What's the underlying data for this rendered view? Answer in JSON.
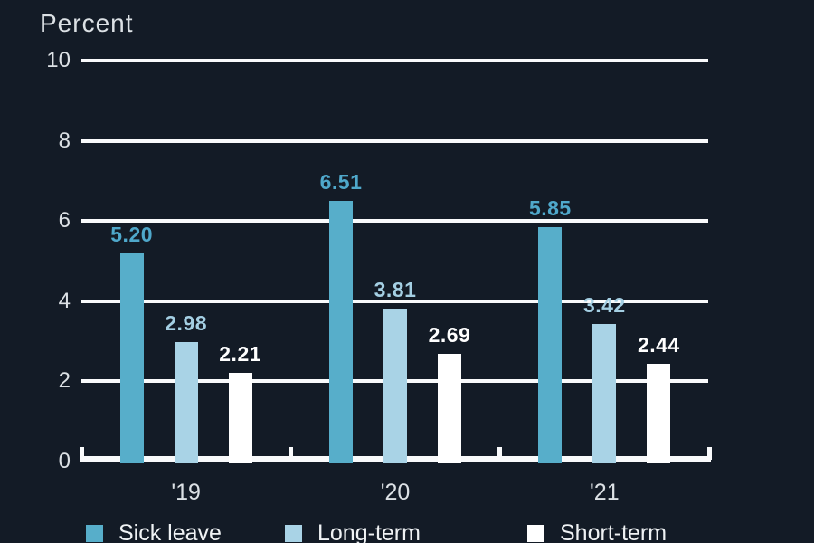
{
  "title": "Percent",
  "colors": {
    "background": "#131B26",
    "grid": "#F9FAFB",
    "axis_text": "#DCE1E5",
    "sick_leave": "#57AECA",
    "long_term": "#A9D3E6",
    "short_term": "#FFFFFF"
  },
  "chart_data": {
    "type": "bar",
    "title": "Percent",
    "xlabel": "",
    "ylabel": "Percent",
    "ylim": [
      0,
      10
    ],
    "yticks": [
      0,
      2,
      4,
      6,
      8,
      10
    ],
    "grid": true,
    "legend_position": "bottom",
    "categories": [
      "'19",
      "'20",
      "'21"
    ],
    "series": [
      {
        "name": "Sick leave",
        "color": "#57AECA",
        "label_color": "#4FA8CB",
        "values": [
          5.2,
          6.51,
          5.85
        ],
        "value_labels": [
          "5.20",
          "6.51",
          "5.85"
        ]
      },
      {
        "name": "Long-term",
        "color": "#A9D3E6",
        "label_color": "#A4CFE3",
        "values": [
          2.98,
          3.81,
          3.42
        ],
        "value_labels": [
          "2.98",
          "3.81",
          "3.42"
        ]
      },
      {
        "name": "Short-term",
        "color": "#FFFFFF",
        "label_color": "#FFFFFF",
        "values": [
          2.21,
          2.69,
          2.44
        ],
        "value_labels": [
          "2.21",
          "2.69",
          "2.44"
        ]
      }
    ]
  }
}
